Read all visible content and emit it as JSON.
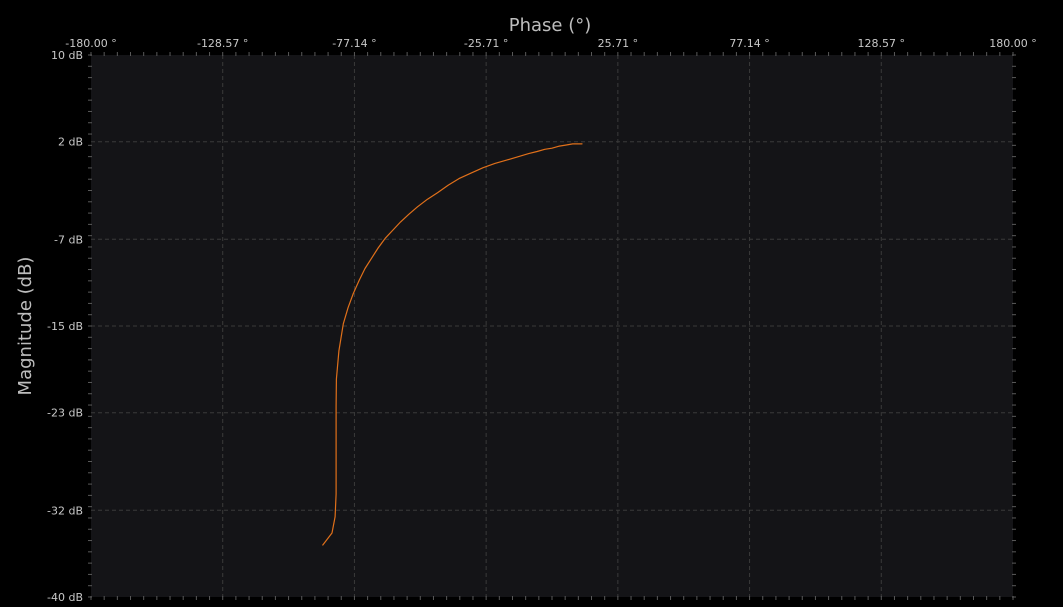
{
  "chart_data": {
    "type": "line",
    "title": "",
    "xlabel": "Phase (°)",
    "ylabel": "Magnitude (dB)",
    "x_axis_position": "top",
    "xlim": [
      -180,
      180
    ],
    "ylim": [
      -40,
      10
    ],
    "x_ticks": [
      -180.0,
      -128.57,
      -77.14,
      -25.71,
      25.71,
      77.14,
      128.57,
      180.0
    ],
    "x_tick_labels": [
      "-180.00 °",
      "-128.57 °",
      "-77.14 °",
      "-25.71 °",
      "25.71 °",
      "77.14 °",
      "128.57 °",
      "180.00 °"
    ],
    "y_ticks": [
      10,
      2,
      -7,
      -15,
      -23,
      -32,
      -40
    ],
    "y_tick_labels": [
      "10 dB",
      "2 dB",
      "-7 dB",
      "-15 dB",
      "-23 dB",
      "-32 dB",
      "-40 dB"
    ],
    "grid": true,
    "legend": "none",
    "colors": {
      "background": "#000000",
      "plot_background": "#141417",
      "grid": "#3a3a3a",
      "text": "#c8c8c8",
      "axis_label": "#bdbdbd",
      "series": "#e0701a"
    },
    "series": [
      {
        "x": [
          -89.5,
          -85.9,
          -84.7,
          -84.3,
          -84.3,
          -84.3,
          -84.3,
          -84.3,
          -84.2,
          -83.2,
          -81.5,
          -79.6,
          -77.6,
          -75.3,
          -73.0,
          -70.6,
          -67.9,
          -65.1,
          -62.3,
          -59.1,
          -55.9,
          -52.5,
          -48.6,
          -44.7,
          -40.5,
          -36.3,
          -31.7,
          -26.9,
          -22.3,
          -17.7,
          -13.5,
          -9.1,
          -5.8,
          -2.8,
          0.0,
          2.9,
          5.6,
          8.1,
          9.8,
          10.6,
          11.2,
          11.7
        ],
        "y": [
          -35.2,
          -34.1,
          -32.6,
          -30.5,
          -28.9,
          -26.8,
          -24.3,
          -22.4,
          -19.9,
          -17.3,
          -14.8,
          -13.3,
          -12.0,
          -10.8,
          -9.7,
          -8.8,
          -7.8,
          -6.9,
          -6.2,
          -5.4,
          -4.7,
          -4.0,
          -3.3,
          -2.7,
          -2.0,
          -1.4,
          -0.9,
          -0.4,
          0.0,
          0.3,
          0.6,
          0.9,
          1.1,
          1.3,
          1.4,
          1.6,
          1.7,
          1.8,
          1.8,
          1.8,
          1.8,
          1.8
        ]
      }
    ]
  }
}
